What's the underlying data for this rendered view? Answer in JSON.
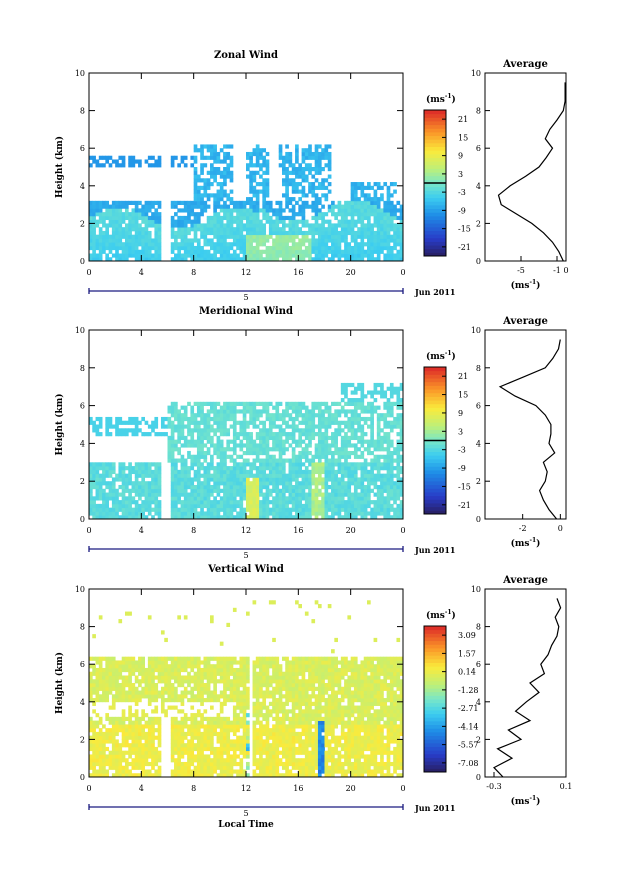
{
  "chart_data": [
    {
      "type": "heatmap",
      "title": "Zonal Wind",
      "ylabel": "Height (km)",
      "xlabel": "",
      "x_ticks": [
        "0",
        "4",
        "8",
        "12",
        "16",
        "20",
        "0"
      ],
      "date_label": "5",
      "month_label": "Jun 2011",
      "y_ticks": [
        "0",
        "2",
        "4",
        "6",
        "8",
        "10"
      ],
      "xlim": [
        0,
        24
      ],
      "ylim": [
        0,
        10
      ],
      "colorbar": {
        "unit": "(ms",
        "unit_exp": "-1",
        "unit_close": ")",
        "tick_labels": [
          "21",
          "15",
          "9",
          "3",
          "-3",
          "-9",
          "-15",
          "-21"
        ],
        "range": [
          -24,
          24
        ],
        "marker_value": 0
      },
      "profile": {
        "title": "Average",
        "x_ticks": [
          "-5",
          "-1",
          "0"
        ],
        "xlim": [
          -9,
          0
        ],
        "y_ticks": [
          "0",
          "2",
          "4",
          "6",
          "8",
          "10"
        ],
        "xlabel": "(ms",
        "xlabel_exp": "-1",
        "xlabel_close": ")",
        "heights": [
          0,
          0.5,
          1,
          1.5,
          2,
          2.5,
          3,
          3.5,
          4,
          4.5,
          5,
          5.5,
          6,
          6.5,
          7,
          7.5,
          8,
          8.5,
          9,
          9.5
        ],
        "values": [
          -0.3,
          -0.8,
          -1.5,
          -2.5,
          -3.8,
          -5.5,
          -7.2,
          -7.5,
          -6.2,
          -4.5,
          -3.0,
          -2.2,
          -1.5,
          -2.3,
          -1.8,
          -1.0,
          -0.3,
          -0.1,
          -0.1,
          -0.1
        ]
      }
    },
    {
      "type": "heatmap",
      "title": "Meridional Wind",
      "ylabel": "Height (km)",
      "xlabel": "",
      "x_ticks": [
        "0",
        "4",
        "8",
        "12",
        "16",
        "20",
        "0"
      ],
      "date_label": "5",
      "month_label": "Jun 2011",
      "y_ticks": [
        "0",
        "2",
        "4",
        "6",
        "8",
        "10"
      ],
      "xlim": [
        0,
        24
      ],
      "ylim": [
        0,
        10
      ],
      "colorbar": {
        "unit": "(ms",
        "unit_exp": "-1",
        "unit_close": ")",
        "tick_labels": [
          "21",
          "15",
          "9",
          "3",
          "-3",
          "-9",
          "-15",
          "-21"
        ],
        "range": [
          -24,
          24
        ],
        "marker_value": 0
      },
      "profile": {
        "title": "Average",
        "x_ticks": [
          "-2",
          "0"
        ],
        "xlim": [
          -4,
          0.3
        ],
        "y_ticks": [
          "0",
          "2",
          "4",
          "6",
          "8",
          "10"
        ],
        "xlabel": "(ms",
        "xlabel_exp": "-1",
        "xlabel_close": ")",
        "heights": [
          0,
          0.5,
          1,
          1.5,
          2,
          2.5,
          3,
          3.5,
          4,
          4.5,
          5,
          5.5,
          6,
          6.5,
          7,
          7.5,
          8,
          8.5,
          9,
          9.5
        ],
        "values": [
          -0.2,
          -0.6,
          -0.9,
          -1.1,
          -0.8,
          -0.7,
          -0.9,
          -0.3,
          -0.6,
          -0.5,
          -0.5,
          -0.8,
          -1.3,
          -2.4,
          -3.2,
          -2.0,
          -0.8,
          -0.4,
          -0.1,
          0.0
        ]
      }
    },
    {
      "type": "heatmap",
      "title": "Vertical Wind",
      "ylabel": "Height (km)",
      "xlabel": "Local Time",
      "x_ticks": [
        "0",
        "4",
        "8",
        "12",
        "16",
        "20",
        "0"
      ],
      "date_label": "5",
      "month_label": "Jun 2011",
      "y_ticks": [
        "0",
        "2",
        "4",
        "6",
        "8",
        "10"
      ],
      "xlim": [
        0,
        24
      ],
      "ylim": [
        0,
        10
      ],
      "colorbar": {
        "unit": "(ms",
        "unit_exp": "-1",
        "unit_close": ")",
        "tick_labels": [
          "3.09",
          "1.57",
          "0.14",
          "-1.28",
          "-2.71",
          "-4.14",
          "-5.57",
          "-7.08"
        ],
        "range": [
          -7.8,
          3.8
        ],
        "marker_value": null
      },
      "profile": {
        "title": "Average",
        "x_ticks": [
          "-0.3",
          "0.1"
        ],
        "xlim": [
          -0.35,
          0.1
        ],
        "y_ticks": [
          "0",
          "2",
          "4",
          "6",
          "8",
          "10"
        ],
        "xlabel": "(ms",
        "xlabel_exp": "-1",
        "xlabel_close": ")",
        "heights": [
          0,
          0.5,
          1,
          1.5,
          2,
          2.5,
          3,
          3.5,
          4,
          4.5,
          5,
          5.5,
          6,
          6.5,
          7,
          7.5,
          8,
          8.5,
          9,
          9.5
        ],
        "values": [
          -0.25,
          -0.3,
          -0.2,
          -0.28,
          -0.15,
          -0.22,
          -0.1,
          -0.18,
          -0.12,
          -0.05,
          -0.1,
          -0.02,
          -0.04,
          0.0,
          0.02,
          0.05,
          0.06,
          0.04,
          0.07,
          0.05
        ]
      }
    }
  ]
}
